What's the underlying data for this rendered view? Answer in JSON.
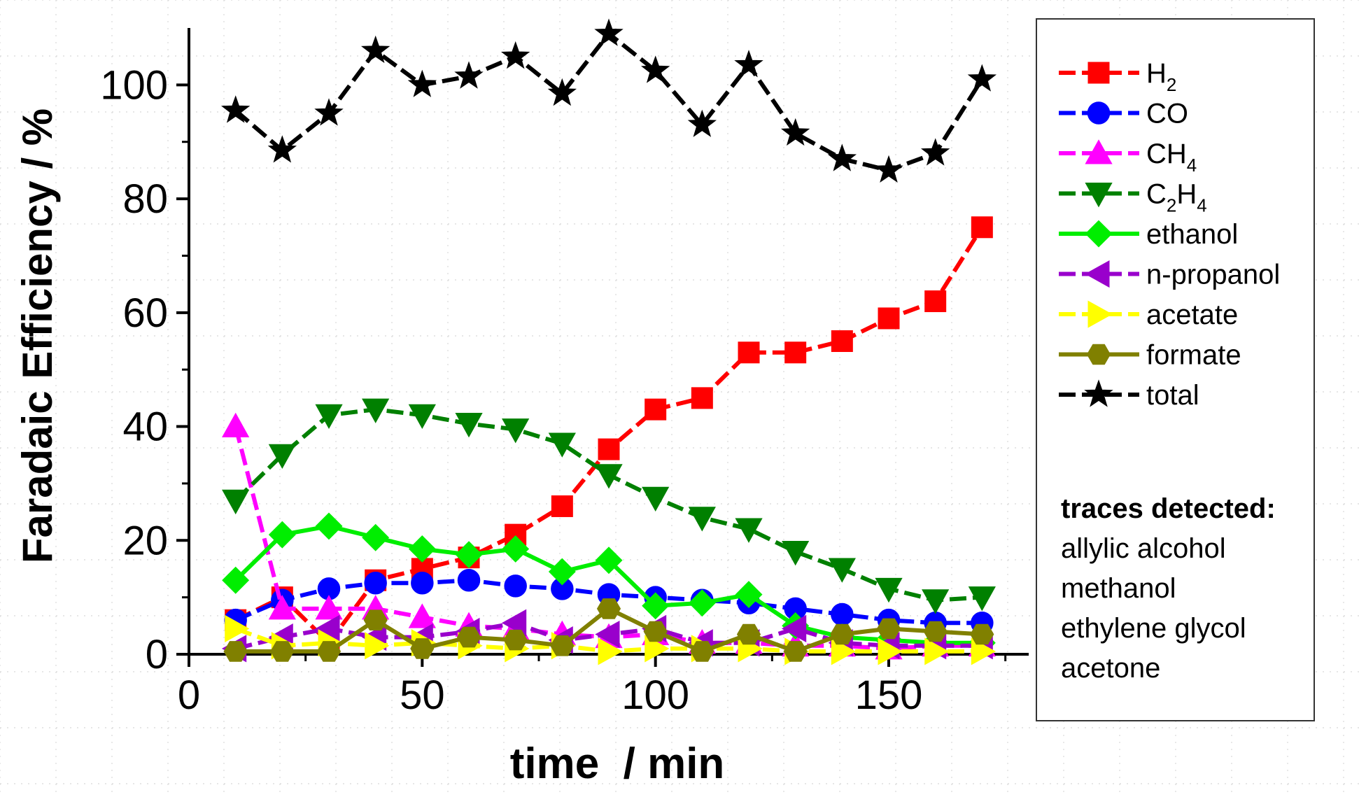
{
  "chart_data": {
    "type": "line",
    "xlabel": "time  / min",
    "ylabel": "Faradaic Efficiency / %",
    "xlim": [
      0,
      180
    ],
    "ylim": [
      0,
      110
    ],
    "xticks": [
      0,
      50,
      100,
      150
    ],
    "yticks": [
      0,
      20,
      40,
      60,
      80,
      100
    ],
    "x": [
      10,
      20,
      30,
      40,
      50,
      60,
      70,
      80,
      90,
      100,
      110,
      120,
      130,
      140,
      150,
      160,
      170
    ],
    "series": [
      {
        "key": "h2",
        "name": "H",
        "sub": "2",
        "color": "#ff0000",
        "marker": "square",
        "dash": "dash",
        "values": [
          6,
          10,
          2,
          13,
          15,
          17,
          21,
          26,
          36,
          43,
          45,
          53,
          53,
          55,
          59,
          62,
          75
        ]
      },
      {
        "key": "co",
        "name": "CO",
        "sub": "",
        "color": "#0000ff",
        "marker": "circle",
        "dash": "dash",
        "values": [
          6,
          9.5,
          11.5,
          12.5,
          12.5,
          13,
          12,
          11.5,
          10.5,
          10,
          9.5,
          9,
          8,
          7,
          6,
          5.5,
          5.5
        ]
      },
      {
        "key": "ch4",
        "name": "CH",
        "sub": "4",
        "color": "#ff00ff",
        "marker": "triangle-up",
        "dash": "dash",
        "values": [
          40,
          8,
          8,
          8,
          6.5,
          5,
          4.5,
          3.5,
          3,
          3.5,
          2,
          2,
          1.5,
          1.5,
          1,
          1.5,
          1.5
        ]
      },
      {
        "key": "c2h4",
        "name": "C",
        "sub": "2",
        "name2": "H",
        "sub2": "4",
        "color": "#008000",
        "marker": "triangle-down",
        "dash": "dash",
        "values": [
          27,
          35,
          42,
          43,
          42,
          40.5,
          39.5,
          37,
          31.5,
          27.5,
          24,
          22,
          18,
          15,
          11.5,
          9.5,
          10
        ]
      },
      {
        "key": "ethanol",
        "name": "ethanol",
        "sub": "",
        "color": "#00ee00",
        "marker": "diamond",
        "dash": "solid",
        "values": [
          13,
          21,
          22.5,
          20.5,
          18.5,
          17.5,
          18.5,
          14.5,
          16.5,
          8.5,
          9,
          10.5,
          5,
          3,
          2.5,
          2,
          2
        ]
      },
      {
        "key": "npropanol",
        "name": "n-propanol",
        "sub": "",
        "color": "#9900cc",
        "marker": "triangle-left",
        "dash": "dash",
        "values": [
          1,
          3,
          4.5,
          3,
          3,
          4,
          5.5,
          2.5,
          3.5,
          4.5,
          2,
          2,
          4.5,
          2,
          1.5,
          1.5,
          1.5
        ]
      },
      {
        "key": "acetate",
        "name": "acetate",
        "sub": "",
        "color": "#ffff00",
        "marker": "triangle-right",
        "dash": "dash",
        "values": [
          4.5,
          1.5,
          2,
          1.5,
          2,
          1.5,
          1,
          1.5,
          0.5,
          1,
          1,
          1,
          0.5,
          0.5,
          0.5,
          0.5,
          0.5
        ]
      },
      {
        "key": "formate",
        "name": "formate",
        "sub": "",
        "color": "#808000",
        "marker": "hexagon",
        "dash": "solid",
        "values": [
          0.5,
          0.5,
          0.5,
          6,
          1,
          3,
          2.5,
          1.5,
          8,
          4,
          0.5,
          3.5,
          0.5,
          3.5,
          4.5,
          4,
          3.5
        ]
      },
      {
        "key": "total",
        "name": "total",
        "sub": "",
        "color": "#000000",
        "marker": "star",
        "dash": "dash",
        "values": [
          95.5,
          88.5,
          95,
          106,
          100,
          101.5,
          105,
          98.5,
          109,
          102.5,
          93,
          103.5,
          91.5,
          87,
          85,
          88,
          101
        ]
      }
    ],
    "legend_position": "right",
    "note_title": "traces detected:",
    "note_lines": [
      "allylic alcohol",
      "methanol",
      "ethylene glycol",
      "acetone"
    ]
  }
}
